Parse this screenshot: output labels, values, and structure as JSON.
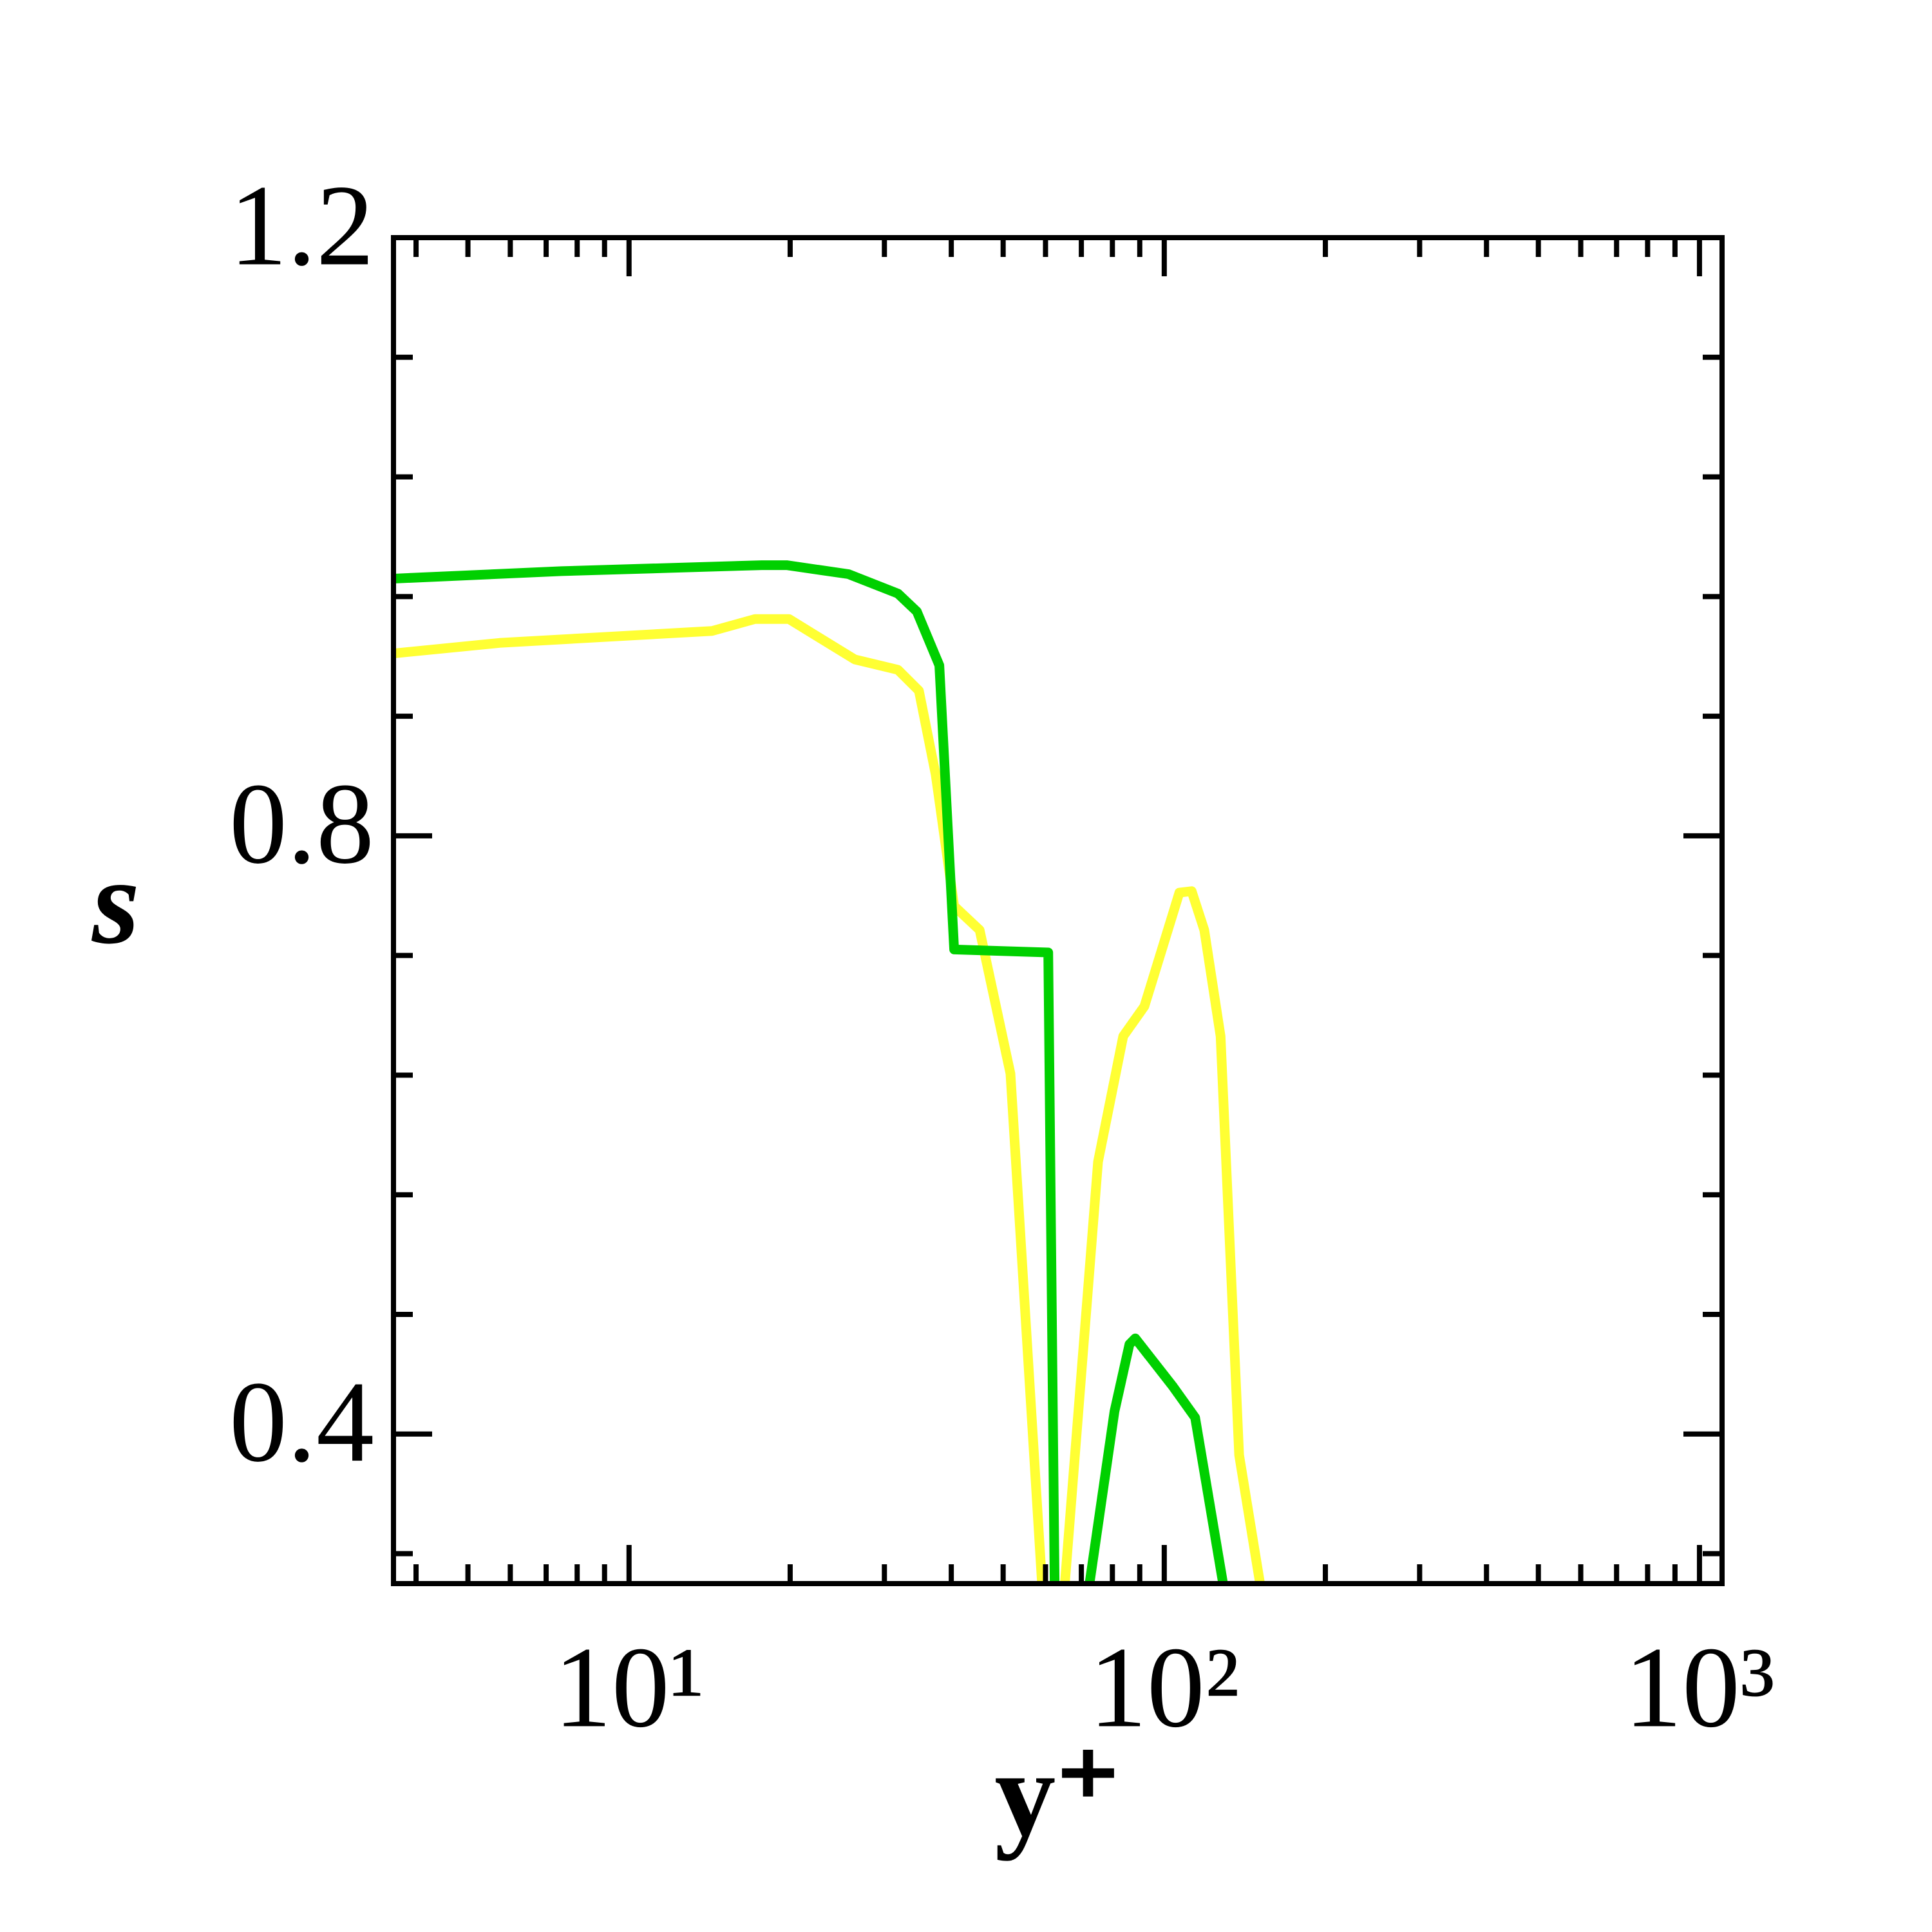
{
  "chart_data": {
    "type": "line",
    "x_label": "y⁺",
    "y_label": "s",
    "xscale": "log",
    "xlim": [
      3.63,
      1102
    ],
    "ylim": [
      0.3,
      1.2
    ],
    "xticks": [
      {
        "value": 10,
        "label": "10¹"
      },
      {
        "value": 100,
        "label": "10²"
      },
      {
        "value": 1000,
        "label": "10³"
      }
    ],
    "yticks": [
      0.4,
      0.8,
      1.2
    ],
    "series": [
      {
        "color": "#ffff33",
        "x": [
          3.63,
          5.73,
          14.3,
          17.2,
          19.9,
          26.4,
          31.8,
          34.8,
          37.4,
          40.5,
          45.2,
          51.6,
          59.1,
          null,
          65.2,
          75.2,
          83.8,
          91.8,
          106.7,
          112.5,
          118.8,
          127.4,
          138,
          151
        ],
        "values": [
          0.922,
          0.929,
          0.937,
          0.945,
          0.945,
          0.918,
          0.911,
          0.897,
          0.841,
          0.753,
          0.737,
          0.641,
          0.3,
          null,
          0.3,
          0.582,
          0.666,
          0.686,
          0.762,
          0.763,
          0.737,
          0.666,
          0.386,
          0.3
        ]
      },
      {
        "color": "#00d000",
        "x": [
          3.63,
          7.48,
          17.7,
          19.7,
          25.7,
          31.8,
          34.5,
          38.0,
          40.5,
          60.7,
          62.4,
          null,
          72.5,
          80.7,
          86.1,
          88.3,
          103.7,
          114.2,
          128.8
        ],
        "values": [
          0.972,
          0.977,
          0.981,
          0.981,
          0.975,
          0.962,
          0.95,
          0.914,
          0.724,
          0.722,
          0.3,
          null,
          0.3,
          0.415,
          0.46,
          0.464,
          0.432,
          0.411,
          0.3
        ]
      }
    ]
  }
}
